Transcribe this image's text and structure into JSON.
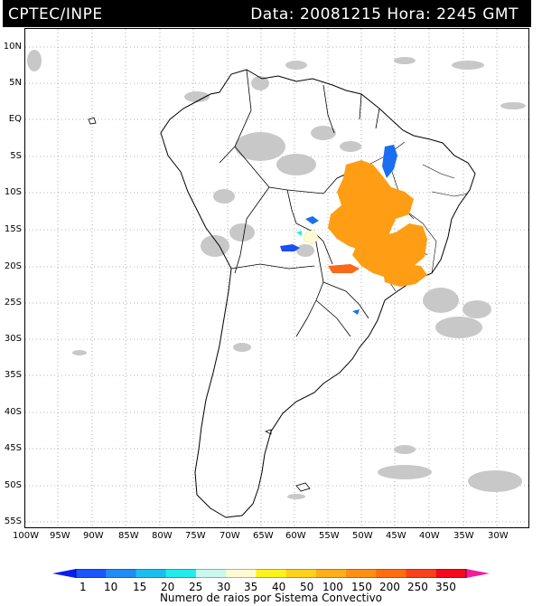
{
  "header": {
    "source": "CPTEC/INPE",
    "datetime": "Data: 20081215 Hora: 2245 GMT"
  },
  "axes": {
    "lat_ticks": [
      "10N",
      "5N",
      "EQ",
      "5S",
      "10S",
      "15S",
      "20S",
      "25S",
      "30S",
      "35S",
      "40S",
      "45S",
      "50S",
      "55S"
    ],
    "lon_ticks": [
      "100W",
      "95W",
      "90W",
      "85W",
      "80W",
      "75W",
      "70W",
      "65W",
      "60W",
      "55W",
      "50W",
      "45W",
      "40W",
      "35W",
      "30W"
    ]
  },
  "legend": {
    "values": [
      "1",
      "10",
      "15",
      "20",
      "25",
      "30",
      "35",
      "40",
      "50",
      "100",
      "150",
      "200",
      "250",
      "350"
    ],
    "caption": "Numero de raios por Sistema Convectivo",
    "colors": [
      "#0a1cf0",
      "#1a55ff",
      "#1e8cf5",
      "#19c0ef",
      "#20ecec",
      "#c8f8f0",
      "#fefbd2",
      "#fff21c",
      "#ffd21a",
      "#ffae18",
      "#ff8f12",
      "#ff6d0e",
      "#f7421c",
      "#f8081c",
      "#f01c9c"
    ]
  },
  "map": {
    "region": "South America",
    "lon_range": [
      -100,
      -26
    ],
    "lat_range": [
      -56,
      12
    ],
    "grid": "dotted",
    "systems": [
      {
        "name": "northeast-brazil-blue",
        "color": "#1a6ff0"
      },
      {
        "name": "central-brazil-orange",
        "color": "#ff9d14"
      },
      {
        "name": "southeast-brazil-orange",
        "color": "#ff9d14"
      },
      {
        "name": "paraguay-orange-red",
        "color": "#f86a18"
      },
      {
        "name": "bolivia-blue",
        "color": "#1a4ff5"
      },
      {
        "name": "rondonia-blue",
        "color": "#1a6ff0"
      },
      {
        "name": "southern-brazil-blue",
        "color": "#1a6ff0"
      }
    ]
  }
}
